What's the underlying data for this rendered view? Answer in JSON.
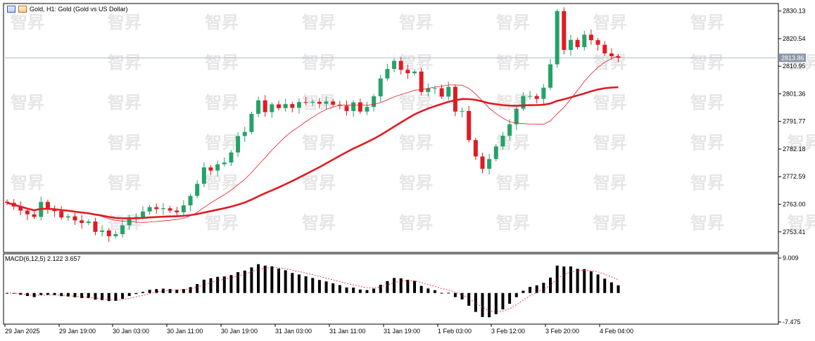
{
  "window": {
    "title": "Gold, H1:  Gold (Gold vs US Dollar)",
    "watermark": "智昇"
  },
  "colors": {
    "bull": "#26a269",
    "bear": "#e01b24",
    "ma_fast": "#e01b24",
    "ma_slow": "#e01b24",
    "macd_hist": "#000000",
    "macd_signal": "#e01b24",
    "grid": "#c8c8c8",
    "bid_line": "#b0b8c0",
    "price_tag_bg": "#8a97a8"
  },
  "chart_data": {
    "type": "candlestick",
    "price_axis": {
      "ticks": [
        "2830.13",
        "2820.54",
        "2810.95",
        "2801.36",
        "2791.77",
        "2782.18",
        "2772.59",
        "2763.00",
        "2753.41"
      ],
      "range": [
        2747.0,
        2832.0
      ]
    },
    "current_price": "2813.86",
    "time_axis": {
      "labels": [
        "29 Jan 2025",
        "29 Jan 19:00",
        "30 Jan 03:00",
        "30 Jan 11:00",
        "30 Jan 19:00",
        "31 Jan 03:00",
        "31 Jan 11:00",
        "31 Jan 19:00",
        "1 Feb 03:00",
        "3 Feb 12:00",
        "3 Feb 20:00",
        "4 Feb 04:00"
      ]
    },
    "candles_close": [
      2763.5,
      2762.2,
      2760.8,
      2759.5,
      2758.6,
      2763.8,
      2761.3,
      2760.6,
      2758.4,
      2758.8,
      2757.4,
      2756.5,
      2757.0,
      2753.4,
      2753.9,
      2751.9,
      2752.6,
      2755.7,
      2758.5,
      2758.6,
      2760.5,
      2762.0,
      2761.3,
      2761.6,
      2760.8,
      2760.2,
      2762.6,
      2765.9,
      2770.1,
      2775.8,
      2774.7,
      2776.9,
      2777.5,
      2781.0,
      2786.7,
      2788.1,
      2794.4,
      2799.1,
      2795.0,
      2797.7,
      2796.4,
      2797.8,
      2796.5,
      2798.5,
      2798.3,
      2798.6,
      2797.9,
      2798.7,
      2797.6,
      2797.2,
      2795.4,
      2798.4,
      2795.2,
      2796.8,
      2800.5,
      2806.7,
      2810.0,
      2812.8,
      2809.7,
      2808.5,
      2809.1,
      2802.0,
      2803.2,
      2803.3,
      2800.4,
      2803.8,
      2795.2,
      2795.4,
      2785.3,
      2779.6,
      2775.3,
      2778.7,
      2783.1,
      2786.8,
      2790.8,
      2796.2,
      2800.6,
      2800.6,
      2799.6,
      2803.5,
      2811.6,
      2830.1,
      2816.6,
      2820.1,
      2817.6,
      2821.9,
      2820.0,
      2818.4,
      2815.4,
      2814.4,
      2813.9
    ],
    "macd": {
      "label": "MACD(6,12,5) 2.122 3.657",
      "axis_ticks": [
        "9.009",
        "-7.475"
      ],
      "range": [
        -7.475,
        9.009
      ]
    }
  }
}
